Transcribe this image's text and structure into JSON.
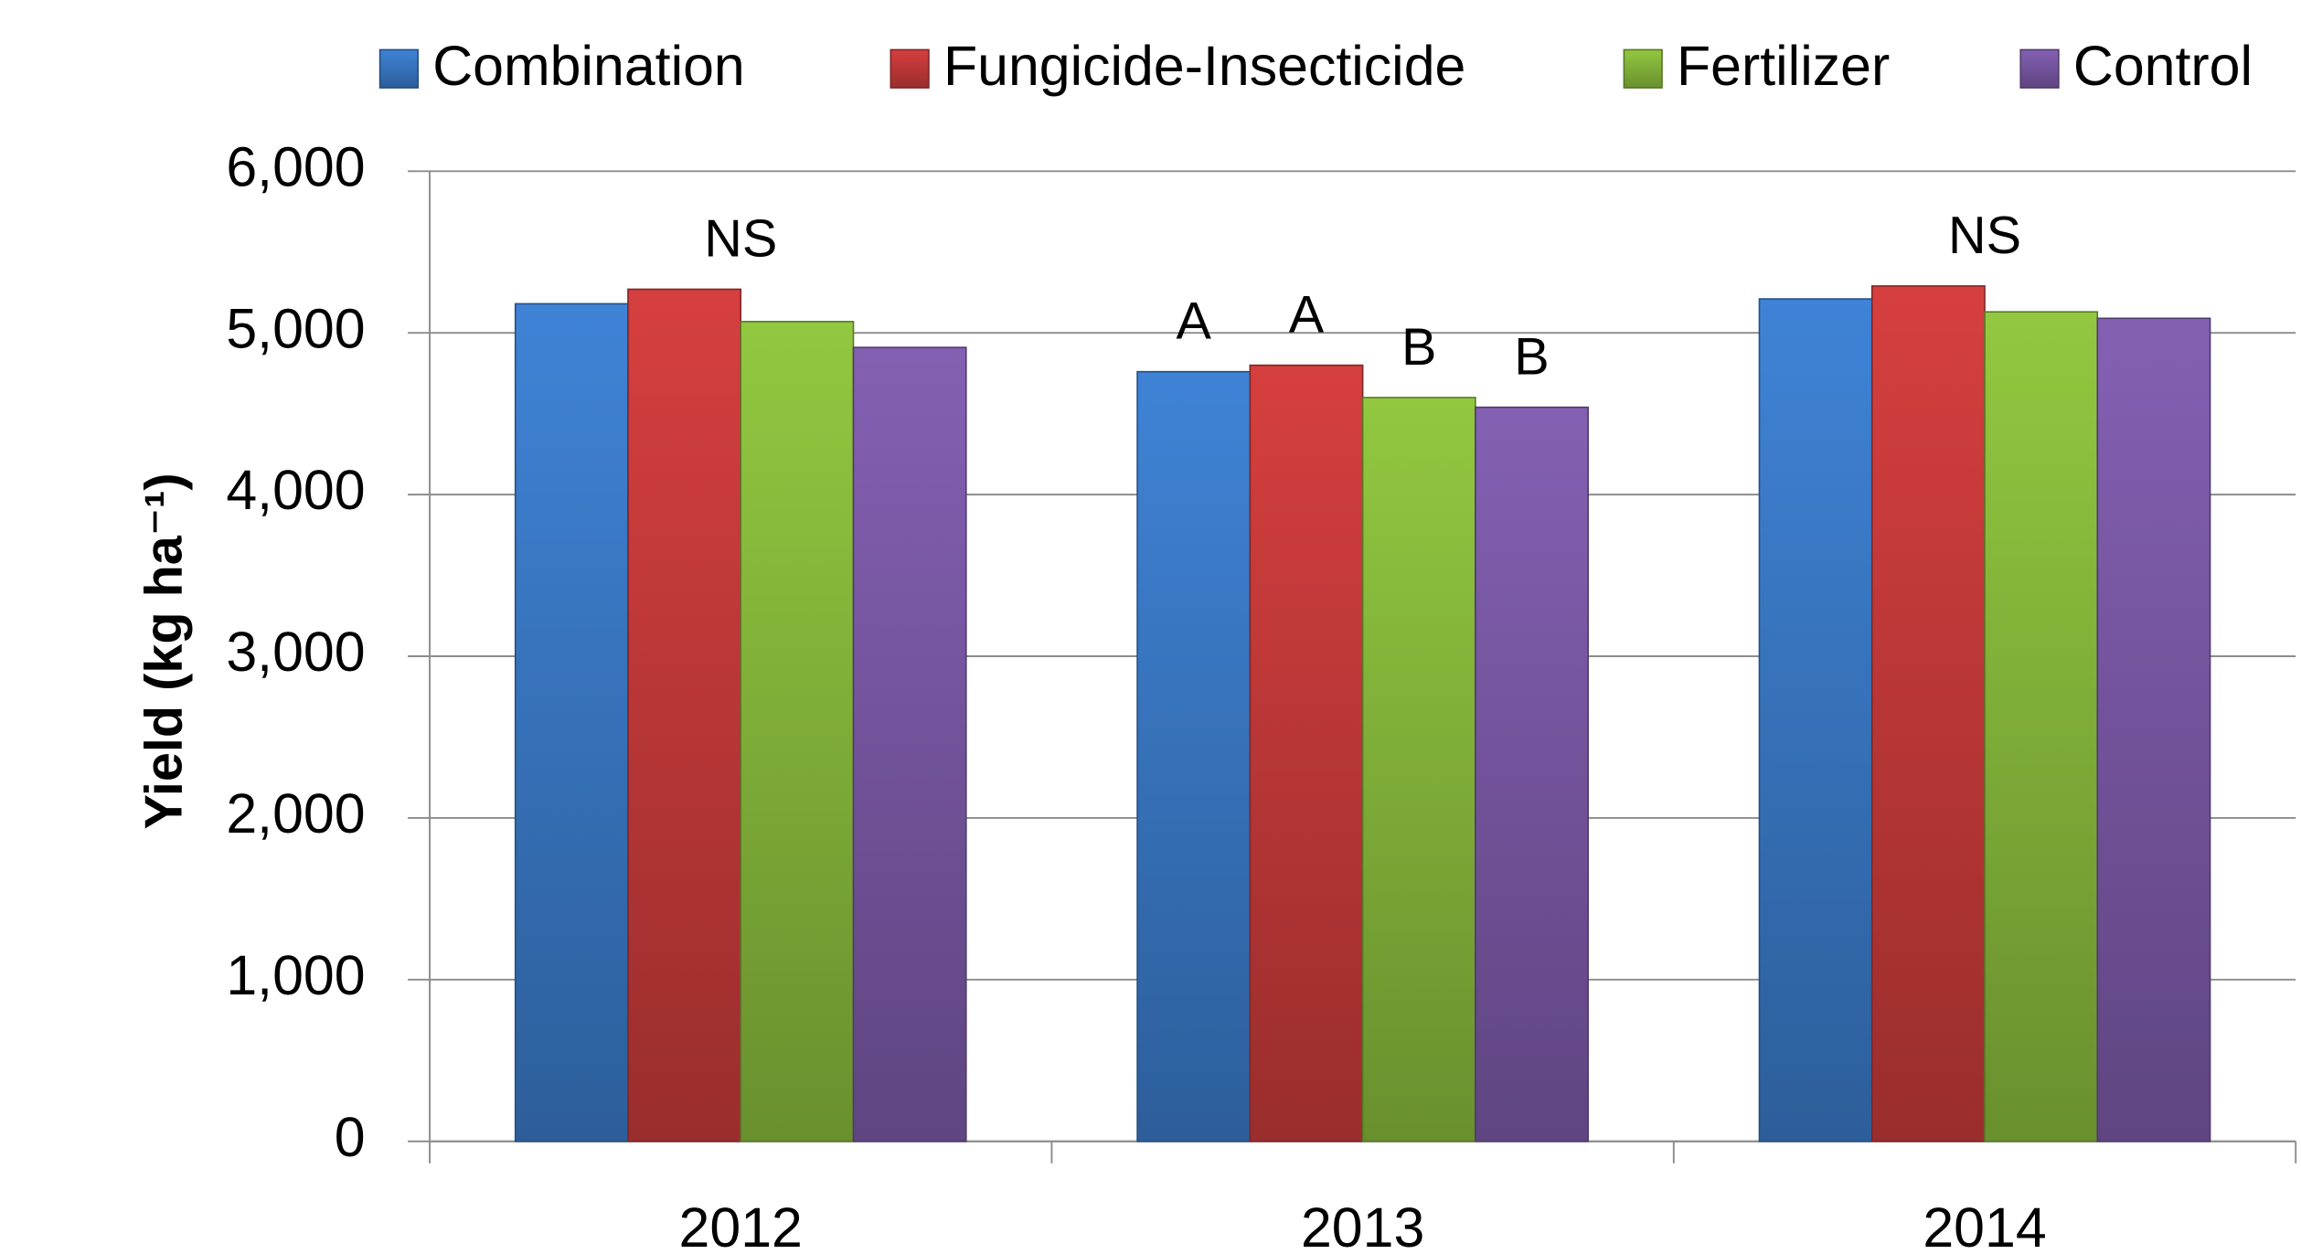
{
  "chart_data": {
    "type": "bar",
    "categories": [
      "2012",
      "2013",
      "2014"
    ],
    "series": [
      {
        "name": "Combination",
        "color": "#3f83d6",
        "values": [
          5180,
          4760,
          5210
        ]
      },
      {
        "name": "Fungicide-Insecticide",
        "color": "#d63f3f",
        "values": [
          5270,
          4800,
          5290
        ]
      },
      {
        "name": "Fertilizer",
        "color": "#92c840",
        "values": [
          5070,
          4600,
          5130
        ]
      },
      {
        "name": "Control",
        "color": "#8460b3",
        "values": [
          4910,
          4540,
          5090
        ]
      }
    ],
    "ylabel": "Yield (kg ha⁻¹)",
    "ylim": [
      0,
      6000
    ],
    "yticks": [
      0,
      {
        "value": 1000,
        "label": "1,000"
      },
      {
        "value": 2000,
        "label": "2,000"
      },
      {
        "value": 3000,
        "label": "3,000"
      },
      {
        "value": 4000,
        "label": "4,000"
      },
      {
        "value": 5000,
        "label": "5,000"
      },
      {
        "value": 6000,
        "label": "6,000"
      }
    ],
    "grid": true,
    "legend": "top",
    "annotations": [
      {
        "text": "NS",
        "category": "2012"
      },
      {
        "text": "A",
        "category": "2013",
        "series": "Combination"
      },
      {
        "text": "A",
        "category": "2013",
        "series": "Fungicide-Insecticide"
      },
      {
        "text": "B",
        "category": "2013",
        "series": "Fertilizer"
      },
      {
        "text": "B",
        "category": "2013",
        "series": "Control"
      },
      {
        "text": "NS",
        "category": "2014"
      }
    ]
  }
}
